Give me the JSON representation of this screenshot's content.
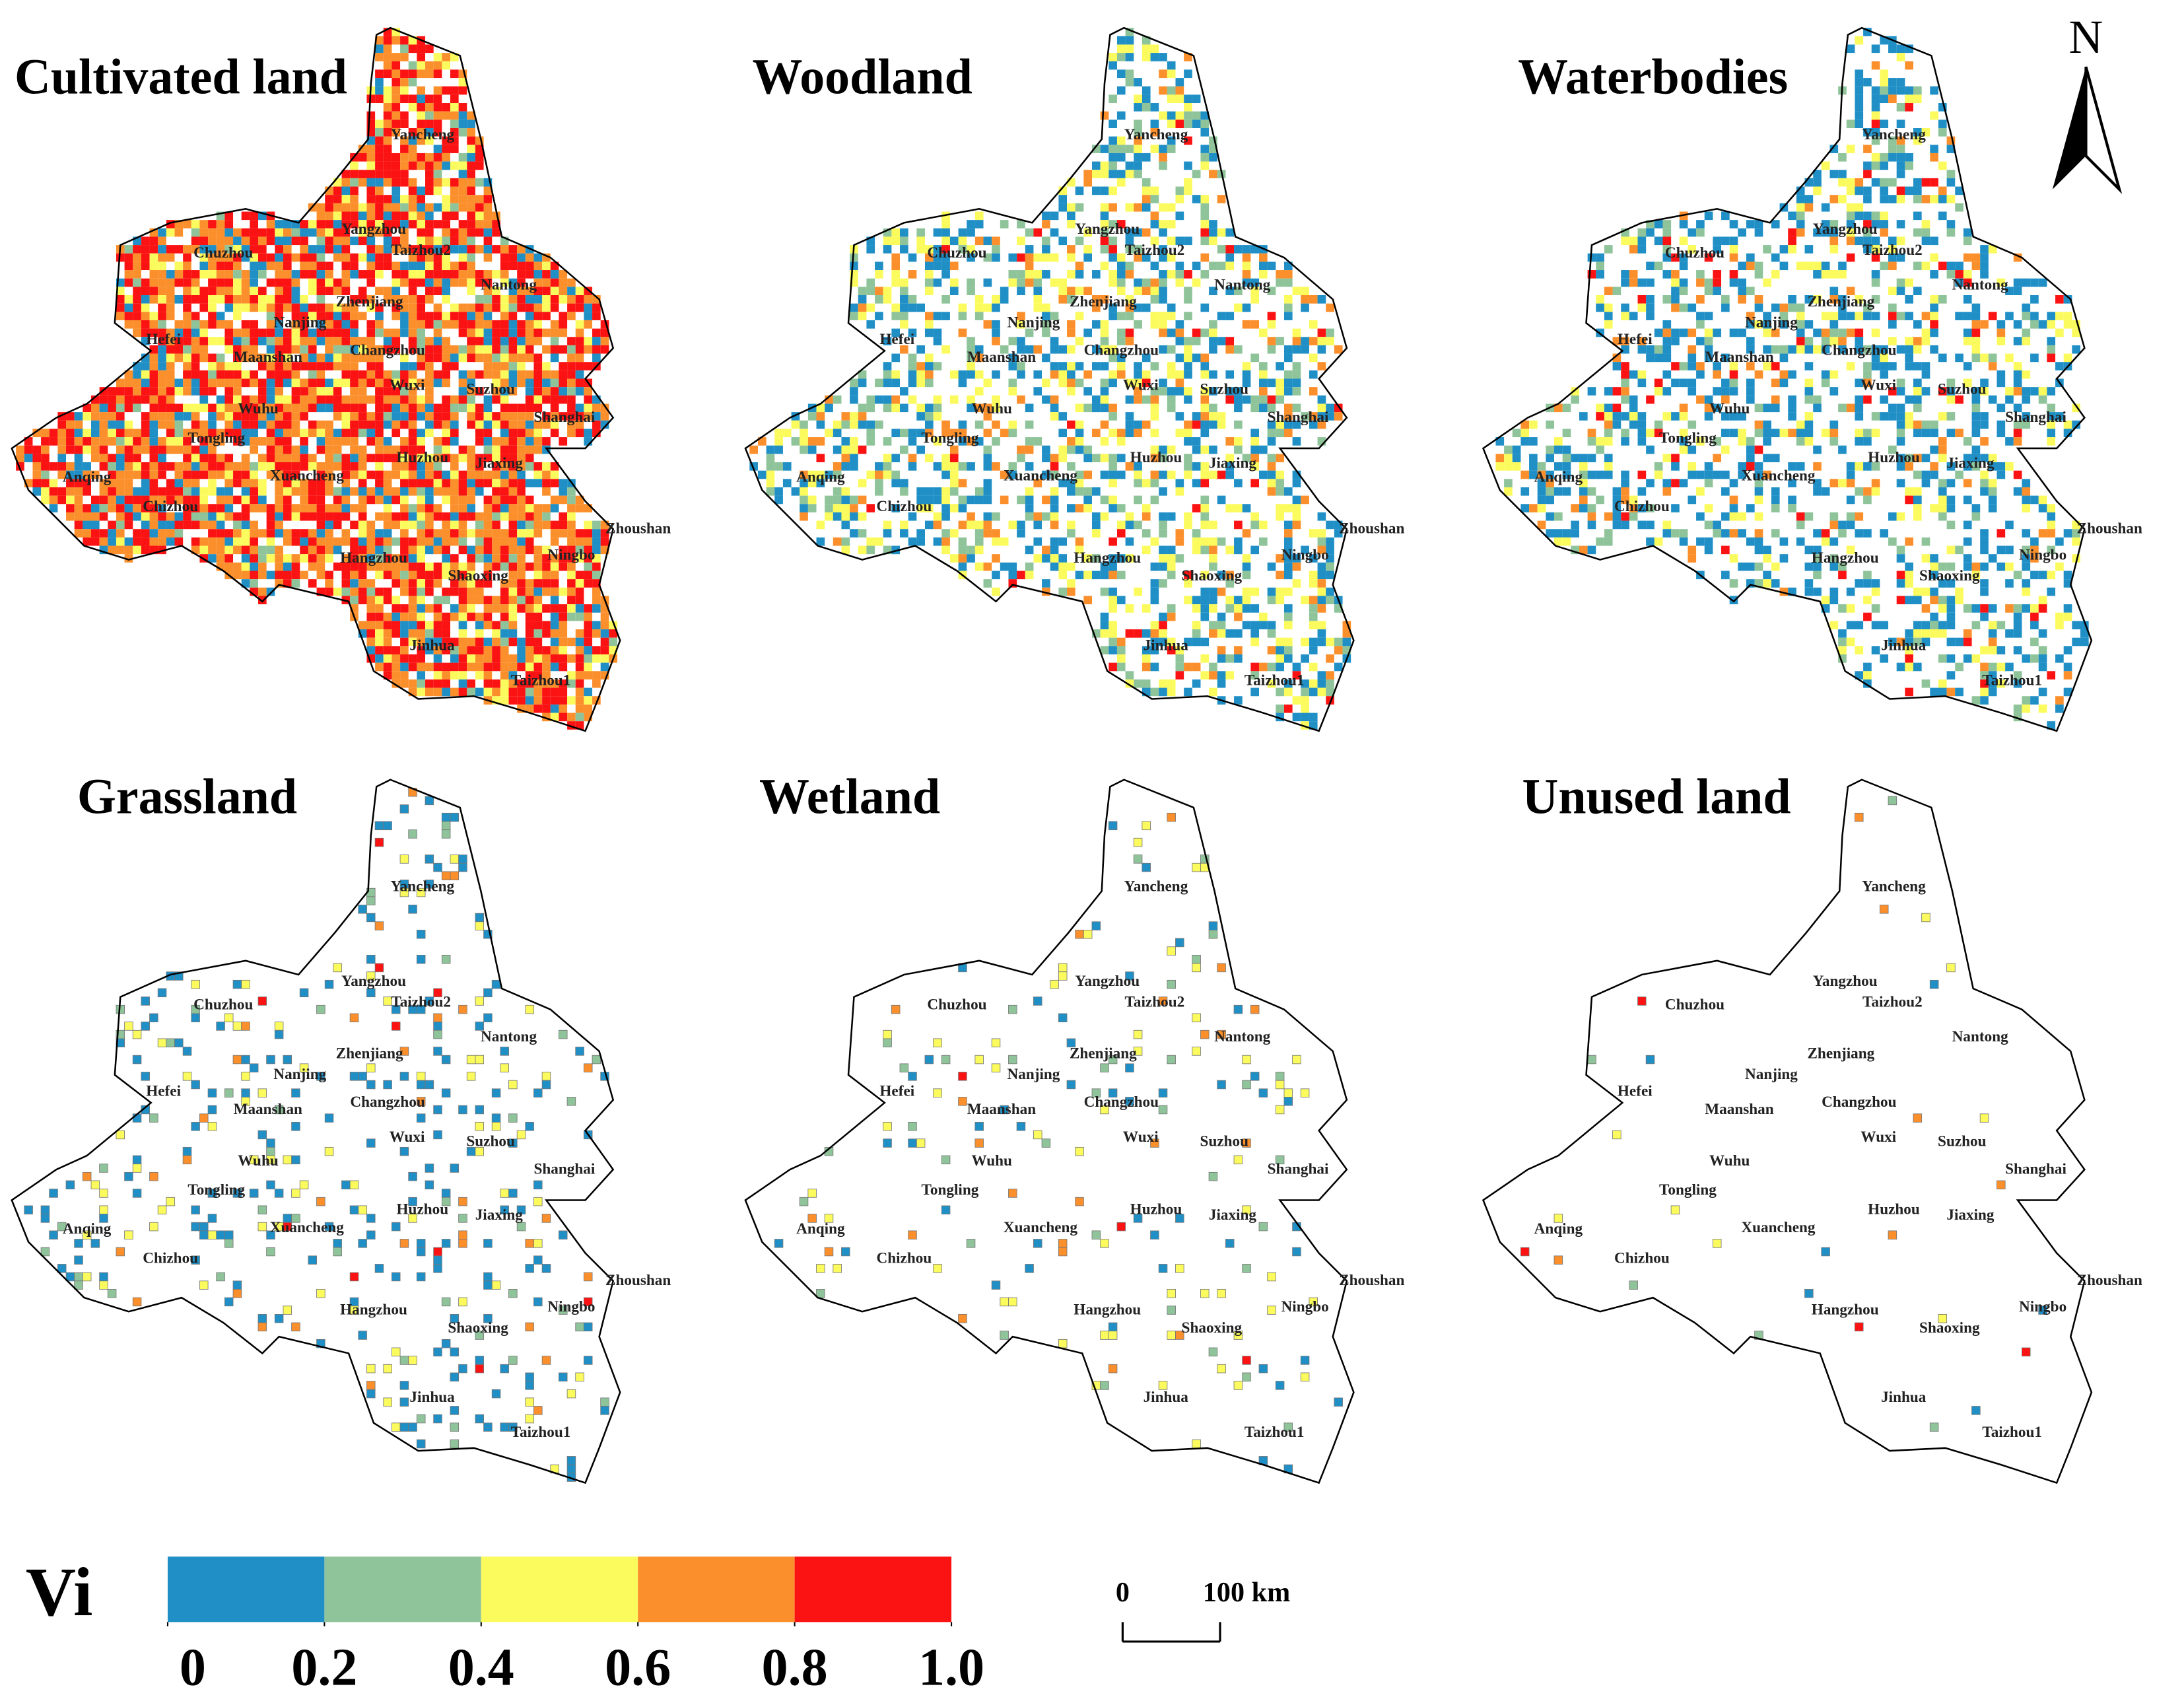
{
  "panels": [
    "Cultivated land",
    "Woodland",
    "Waterbodies",
    "Grassland",
    "Wetland",
    "Unused land"
  ],
  "cities": [
    "Yancheng",
    "Chuzhou",
    "Yangzhou",
    "Taizhou2",
    "Nantong",
    "Zhenjiang",
    "Nanjing",
    "Hefei",
    "Maanshan",
    "Changzhou",
    "Wuxi",
    "Suzhou",
    "Shanghai",
    "Wuhu",
    "Tongling",
    "Huzhou",
    "Jiaxing",
    "Anqing",
    "Xuancheng",
    "Chizhou",
    "Zhoushan",
    "Hangzhou",
    "Shaoxing",
    "Ningbo",
    "Jinhua",
    "Taizhou1"
  ],
  "legend": {
    "title": "Vi",
    "ticks": [
      0,
      0.2,
      0.4,
      0.6,
      0.8,
      {
        "value": 1.0,
        "label": "1.0"
      }
    ],
    "colors": [
      "#1f8fc6",
      "#8fc49a",
      "#fbfb5e",
      "#fb8f2c",
      "#fb1212"
    ]
  },
  "scale_bar": {
    "labels": [
      "0",
      "100 km"
    ]
  },
  "north": "N"
}
